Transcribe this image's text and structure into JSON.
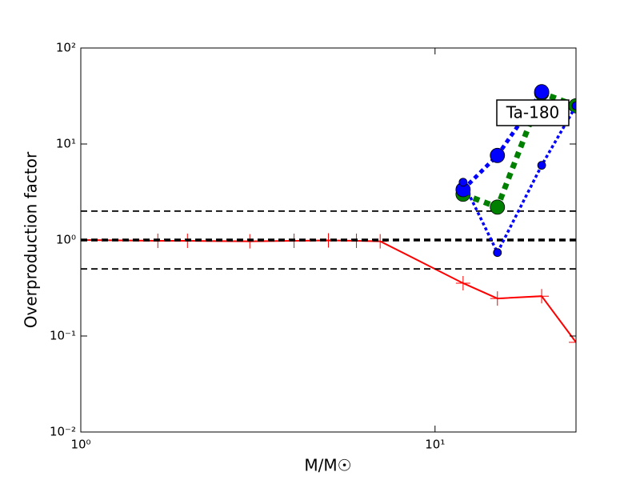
{
  "chart_data": {
    "type": "line",
    "xlabel": "M/M☉",
    "ylabel": "Overproduction factor",
    "annotation": "Ta-180",
    "xscale": "log",
    "yscale": "log",
    "xlim": [
      1,
      25
    ],
    "ylim": [
      0.01,
      100
    ],
    "xticks": [
      {
        "value": 1,
        "label": "10⁰"
      },
      {
        "value": 10,
        "label": "10¹"
      }
    ],
    "yticks": [
      {
        "value": 0.01,
        "label": "10⁻²"
      },
      {
        "value": 0.1,
        "label": "10⁻¹"
      },
      {
        "value": 1,
        "label": "10⁰"
      },
      {
        "value": 10,
        "label": "10¹"
      },
      {
        "value": 100,
        "label": "10²"
      }
    ],
    "series": [
      {
        "color": "#ff0000",
        "linestyle": "solid",
        "marker": "+",
        "x": [
          1,
          1.65,
          2,
          3,
          4,
          5,
          6,
          7,
          12,
          15,
          20,
          25
        ],
        "values": [
          1.0,
          0.98,
          0.98,
          0.97,
          0.98,
          0.99,
          0.98,
          0.97,
          0.355,
          0.246,
          0.26,
          0.086
        ]
      },
      {
        "color": "#000000",
        "linestyle": "dashed",
        "marker": null,
        "x": [
          1,
          25
        ],
        "values": [
          2,
          2
        ]
      },
      {
        "color": "#000000",
        "linestyle": "dashed",
        "marker": null,
        "x": [
          1,
          25
        ],
        "values": [
          1,
          1
        ]
      },
      {
        "color": "#000000",
        "linestyle": "dashed",
        "marker": null,
        "x": [
          1,
          25
        ],
        "values": [
          0.5,
          0.5
        ]
      },
      {
        "color": "#008000",
        "linestyle": "dotted",
        "marker": "o",
        "x": [
          12,
          15,
          20,
          25
        ],
        "values": [
          3.0,
          2.2,
          34,
          25
        ]
      },
      {
        "color": "#0000ff",
        "linestyle": "dotted",
        "marker": "o",
        "x": [
          12,
          15,
          20
        ],
        "values": [
          3.35,
          7.6,
          35
        ]
      },
      {
        "color": "#0000ff",
        "linestyle": "dotted",
        "marker": "o",
        "x": [
          12,
          15,
          20,
          25
        ],
        "values": [
          4.0,
          0.74,
          6.0,
          25
        ]
      }
    ]
  }
}
